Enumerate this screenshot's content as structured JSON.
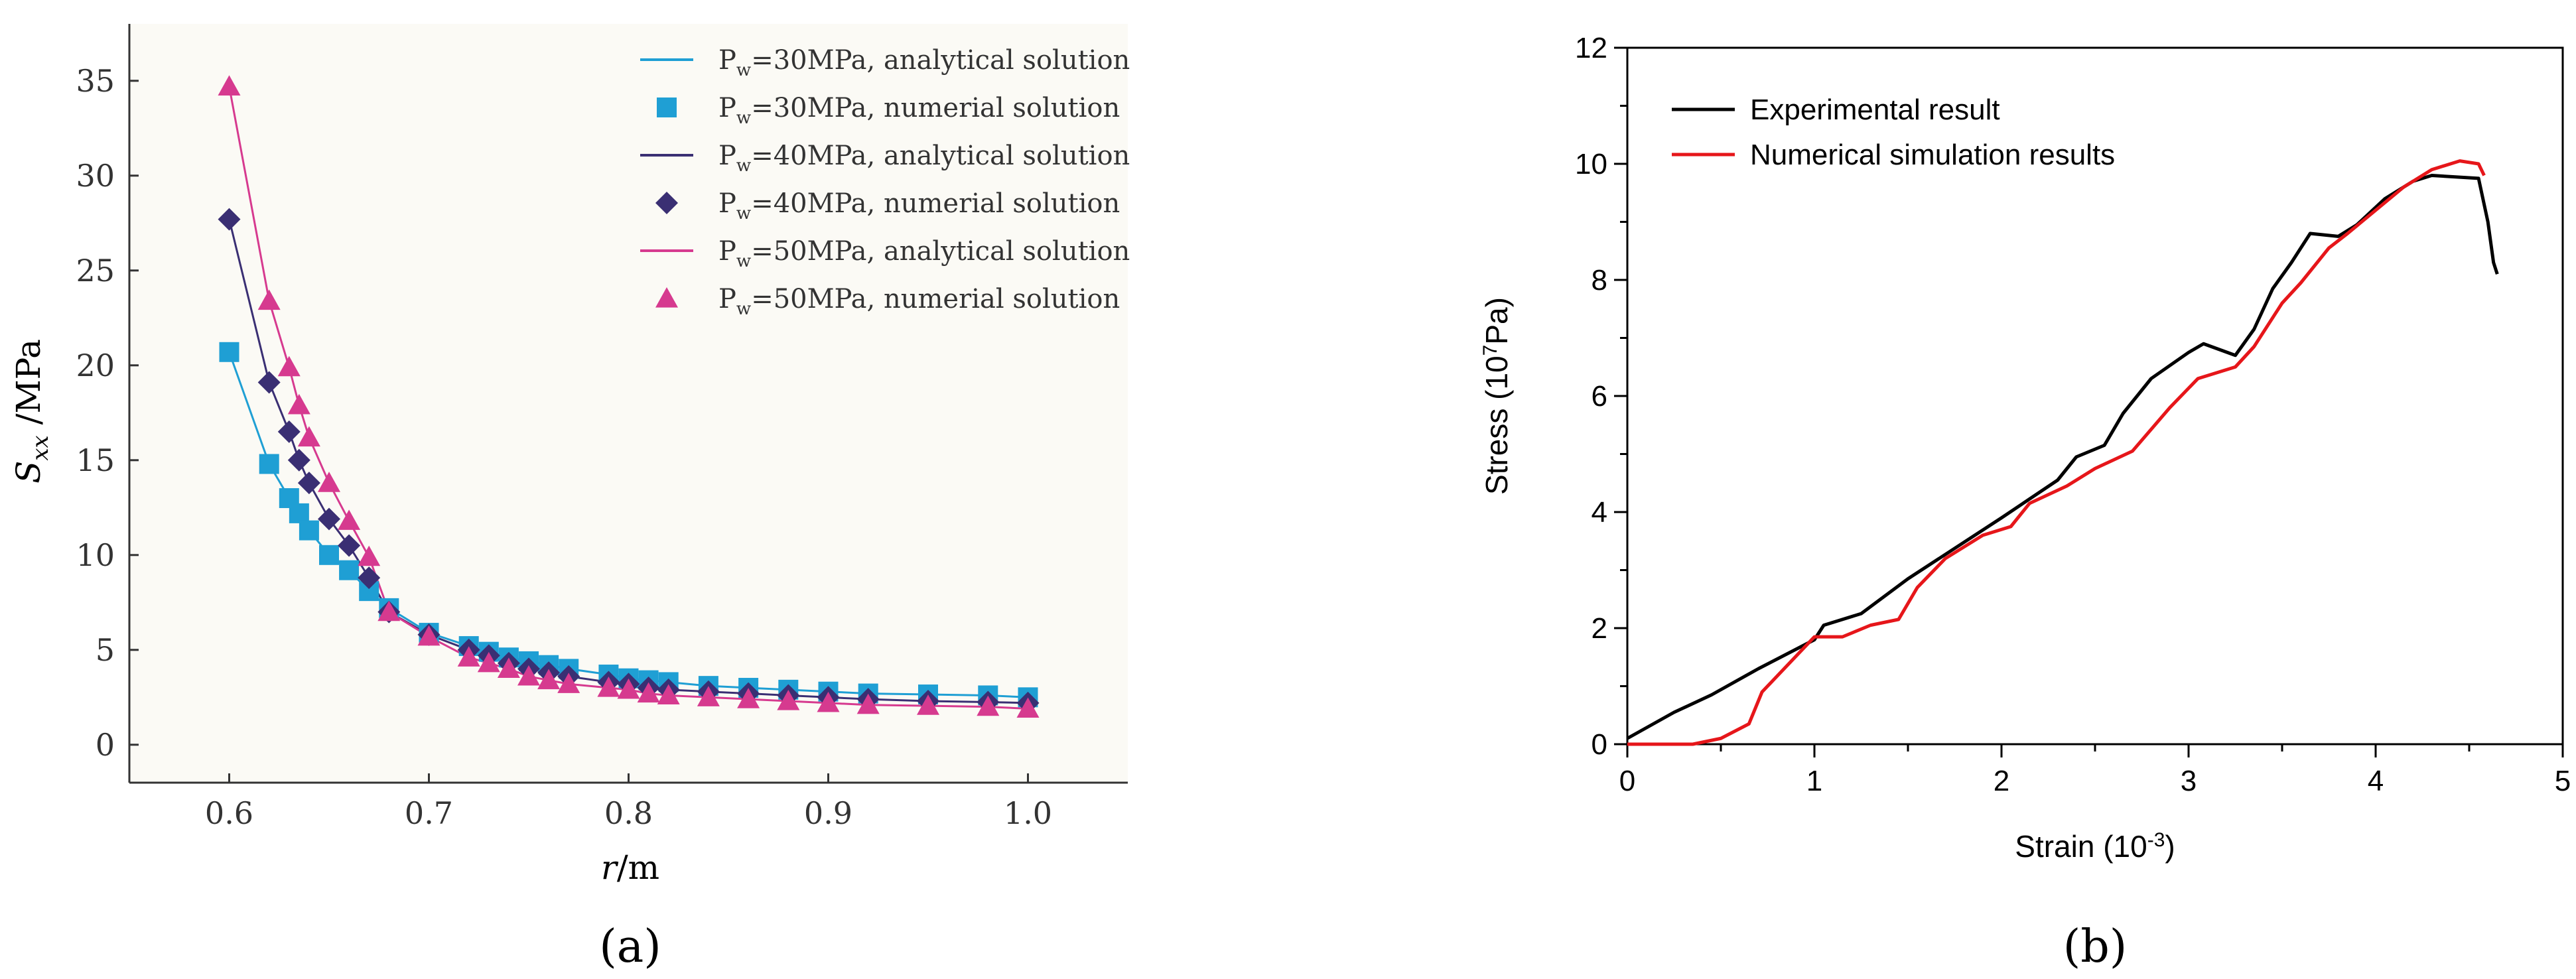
{
  "colors": {
    "p30": "#1f9fd4",
    "p40": "#3a2f73",
    "p50": "#d63a8f",
    "experimental": "#000000",
    "numerical": "#e6161a"
  },
  "panel_a": {
    "label": "(a)",
    "legend": [
      {
        "text": "P_w=30MPa, analytical solution"
      },
      {
        "text": "P_w=30MPa, numerial solution"
      },
      {
        "text": "P_w=40MPa, analytical solution"
      },
      {
        "text": "P_w=40MPa, numerial solution"
      },
      {
        "text": "P_w=50MPa, analytical solution"
      },
      {
        "text": "P_w=50MPa, numerial solution"
      }
    ],
    "legend_rows": [
      {
        "p": "P",
        "sub": "w",
        "rest": "=30MPa, analytical solution"
      },
      {
        "p": "P",
        "sub": "w",
        "rest": "=30MPa, numerial solution"
      },
      {
        "p": "P",
        "sub": "w",
        "rest": "=40MPa, analytical solution"
      },
      {
        "p": "P",
        "sub": "w",
        "rest": "=40MPa, numerial solution"
      },
      {
        "p": "P",
        "sub": "w",
        "rest": "=50MPa, analytical solution"
      },
      {
        "p": "P",
        "sub": "w",
        "rest": "=50MPa, numerial solution"
      }
    ],
    "ylabel_main": "S",
    "ylabel_sub": "xx",
    "ylabel_rest": " /MPa",
    "xlabel_main": "r",
    "xlabel_rest": "/m"
  },
  "panel_b": {
    "label": "(b)",
    "ylabel": "Stress (10",
    "ylabel_exp": "7",
    "ylabel_end": "Pa)",
    "xlabel": "Strain (10",
    "xlabel_exp": "-3",
    "xlabel_end": ")"
  },
  "chart_data": [
    {
      "type": "line",
      "title": "",
      "xlabel": "r/m",
      "ylabel": "S_xx /MPa",
      "xlim": [
        0.55,
        1.05
      ],
      "ylim": [
        -2,
        38
      ],
      "xticks": [
        "0.6",
        "0.7",
        "0.8",
        "0.9",
        "1.0"
      ],
      "yticks": [
        "0",
        "5",
        "10",
        "15",
        "20",
        "25",
        "30",
        "35"
      ],
      "series": [
        {
          "name": "P_w=30MPa, analytical solution",
          "marker": "square",
          "x": [
            0.6,
            0.62,
            0.63,
            0.635,
            0.64,
            0.65,
            0.66,
            0.67,
            0.68,
            0.7,
            0.72,
            0.73,
            0.74,
            0.75,
            0.76,
            0.77,
            0.79,
            0.8,
            0.81,
            0.82,
            0.84,
            0.86,
            0.88,
            0.9,
            0.92,
            0.95,
            0.98,
            1.0
          ],
          "y": [
            20.7,
            14.8,
            13.0,
            12.2,
            11.3,
            10.0,
            9.2,
            8.1,
            7.2,
            5.9,
            5.2,
            4.9,
            4.6,
            4.4,
            4.2,
            4.0,
            3.7,
            3.5,
            3.4,
            3.3,
            3.1,
            3.0,
            2.9,
            2.8,
            2.7,
            2.65,
            2.6,
            2.5
          ]
        },
        {
          "name": "P_w=40MPa, analytical solution",
          "marker": "diamond",
          "x": [
            0.6,
            0.62,
            0.63,
            0.635,
            0.64,
            0.65,
            0.66,
            0.67,
            0.68,
            0.7,
            0.72,
            0.73,
            0.74,
            0.75,
            0.76,
            0.77,
            0.79,
            0.8,
            0.81,
            0.82,
            0.84,
            0.86,
            0.88,
            0.9,
            0.92,
            0.95,
            0.98,
            1.0
          ],
          "y": [
            27.7,
            19.1,
            16.5,
            15.0,
            13.8,
            11.9,
            10.5,
            8.8,
            7.0,
            5.8,
            5.0,
            4.7,
            4.3,
            4.0,
            3.8,
            3.6,
            3.3,
            3.2,
            3.0,
            2.9,
            2.8,
            2.7,
            2.6,
            2.5,
            2.4,
            2.3,
            2.25,
            2.2
          ]
        },
        {
          "name": "P_w=50MPa, analytical solution",
          "marker": "triangle",
          "x": [
            0.6,
            0.62,
            0.63,
            0.635,
            0.64,
            0.65,
            0.66,
            0.67,
            0.68,
            0.7,
            0.72,
            0.73,
            0.74,
            0.75,
            0.76,
            0.77,
            0.79,
            0.8,
            0.81,
            0.82,
            0.84,
            0.86,
            0.88,
            0.9,
            0.92,
            0.95,
            0.98,
            1.0
          ],
          "y": [
            34.7,
            23.4,
            19.9,
            17.9,
            16.2,
            13.8,
            11.8,
            9.9,
            7.0,
            5.7,
            4.6,
            4.3,
            4.0,
            3.6,
            3.4,
            3.2,
            3.0,
            2.9,
            2.7,
            2.6,
            2.5,
            2.4,
            2.3,
            2.2,
            2.1,
            2.05,
            2.0,
            1.9
          ]
        }
      ]
    },
    {
      "type": "line",
      "title": "",
      "xlabel": "Strain (10^-3)",
      "ylabel": "Stress (10^7Pa)",
      "xlim": [
        0,
        5
      ],
      "ylim": [
        0,
        12
      ],
      "xticks": [
        "0",
        "1",
        "2",
        "3",
        "4",
        "5"
      ],
      "yticks": [
        "0",
        "2",
        "4",
        "6",
        "8",
        "10",
        "12"
      ],
      "legend_position": "top-left",
      "series": [
        {
          "name": "Experimental result",
          "x": [
            0,
            0.25,
            0.45,
            0.7,
            1.0,
            1.05,
            1.25,
            1.5,
            2.0,
            2.3,
            2.4,
            2.55,
            2.65,
            2.8,
            3.0,
            3.08,
            3.25,
            3.35,
            3.45,
            3.55,
            3.65,
            3.8,
            3.9,
            4.05,
            4.2,
            4.3,
            4.55,
            4.6,
            4.63,
            4.65
          ],
          "y": [
            0.1,
            0.55,
            0.85,
            1.3,
            1.8,
            2.05,
            2.25,
            2.85,
            3.9,
            4.55,
            4.95,
            5.15,
            5.7,
            6.3,
            6.75,
            6.9,
            6.7,
            7.15,
            7.85,
            8.3,
            8.8,
            8.75,
            8.95,
            9.4,
            9.7,
            9.8,
            9.75,
            9.0,
            8.3,
            8.1
          ]
        },
        {
          "name": "Numerical simulation results",
          "x": [
            0,
            0.35,
            0.5,
            0.65,
            0.72,
            1.0,
            1.15,
            1.3,
            1.45,
            1.55,
            1.7,
            1.9,
            2.05,
            2.15,
            2.35,
            2.5,
            2.7,
            2.9,
            3.05,
            3.25,
            3.35,
            3.5,
            3.6,
            3.75,
            3.85,
            4.0,
            4.15,
            4.3,
            4.45,
            4.55,
            4.58
          ],
          "y": [
            0,
            0,
            0.1,
            0.35,
            0.9,
            1.85,
            1.85,
            2.05,
            2.15,
            2.7,
            3.2,
            3.6,
            3.75,
            4.15,
            4.45,
            4.75,
            5.05,
            5.8,
            6.3,
            6.5,
            6.85,
            7.6,
            7.95,
            8.55,
            8.8,
            9.2,
            9.6,
            9.9,
            10.05,
            10.0,
            9.8
          ]
        }
      ]
    }
  ]
}
